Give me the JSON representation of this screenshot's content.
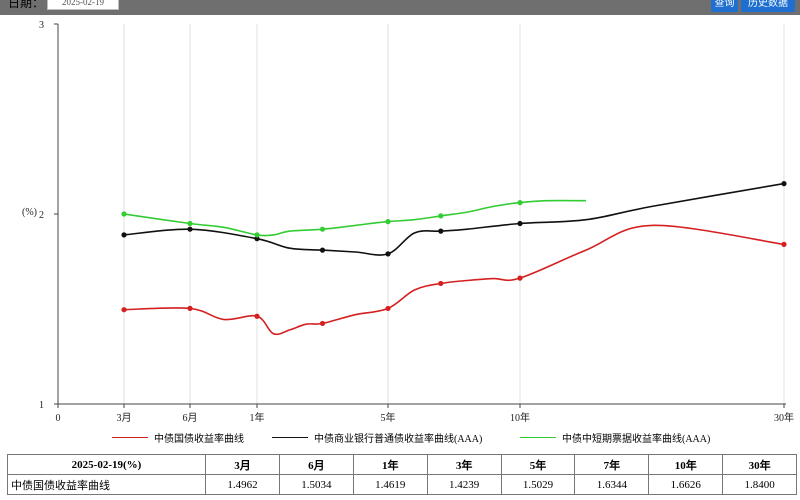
{
  "toolbar": {
    "date_label": "日期：",
    "date_value": "2025-02-19",
    "query_label": "查询",
    "history_label": "历史数据"
  },
  "chart_data": {
    "type": "line",
    "ylabel": "(%)",
    "ylim": [
      1,
      3
    ],
    "yticks": [
      "1",
      "2",
      "3"
    ],
    "xlim": [
      0,
      30
    ],
    "xticks": [
      {
        "v": 0,
        "label": "0"
      },
      {
        "v": 0.25,
        "label": "3月"
      },
      {
        "v": 0.5,
        "label": "6月"
      },
      {
        "v": 1,
        "label": "1年"
      },
      {
        "v": 5,
        "label": "5年"
      },
      {
        "v": 10,
        "label": "10年"
      },
      {
        "v": 30,
        "label": "30年"
      }
    ],
    "series": [
      {
        "name": "中债国债收益率曲线",
        "color": "#d42020",
        "x": [
          0.25,
          0.5,
          0.75,
          1,
          1.5,
          2,
          2.5,
          3,
          4,
          5,
          6,
          7,
          8,
          9,
          10,
          15,
          20,
          30
        ],
        "y": [
          1.4962,
          1.5034,
          1.445,
          1.4619,
          1.37,
          1.39,
          1.42,
          1.4239,
          1.47,
          1.5029,
          1.6,
          1.6344,
          1.65,
          1.66,
          1.6626,
          1.81,
          1.94,
          1.84
        ],
        "markers_x": [
          0.25,
          0.5,
          1,
          3,
          5,
          7,
          10,
          30
        ],
        "markers_y": [
          1.4962,
          1.5034,
          1.4619,
          1.4239,
          1.5029,
          1.6344,
          1.6626,
          1.84
        ]
      },
      {
        "name": "中债商业银行普通债收益率曲线(AAA)",
        "color": "#111111",
        "x": [
          0.25,
          0.5,
          1,
          2,
          3,
          4,
          5,
          6,
          7,
          8,
          10,
          15,
          20,
          30
        ],
        "y": [
          1.89,
          1.92,
          1.87,
          1.82,
          1.81,
          1.8,
          1.79,
          1.9,
          1.91,
          1.92,
          1.95,
          1.97,
          2.04,
          2.16
        ],
        "markers_x": [
          0.25,
          0.5,
          1,
          3,
          5,
          7,
          10,
          30
        ],
        "markers_y": [
          1.89,
          1.92,
          1.87,
          1.81,
          1.79,
          1.91,
          1.95,
          2.16
        ]
      },
      {
        "name": "中债中短期票据收益率曲线(AAA)",
        "color": "#33cc33",
        "x": [
          0.25,
          0.5,
          0.75,
          1,
          1.5,
          2,
          3,
          4,
          5,
          6,
          7,
          8,
          9,
          10,
          12,
          15
        ],
        "y": [
          2.0,
          1.95,
          1.93,
          1.89,
          1.89,
          1.91,
          1.92,
          1.94,
          1.96,
          1.97,
          1.99,
          2.01,
          2.04,
          2.06,
          2.07,
          2.07
        ],
        "markers_x": [
          0.25,
          0.5,
          1,
          3,
          5,
          7,
          10
        ],
        "markers_y": [
          2.0,
          1.95,
          1.89,
          1.92,
          1.96,
          1.99,
          2.06
        ]
      }
    ]
  },
  "table": {
    "header": [
      "2025-02-19(%)",
      "3月",
      "6月",
      "1年",
      "3年",
      "5年",
      "7年",
      "10年",
      "30年"
    ],
    "rows": [
      [
        "中债国债收益率曲线",
        "1.4962",
        "1.5034",
        "1.4619",
        "1.4239",
        "1.5029",
        "1.6344",
        "1.6626",
        "1.8400"
      ]
    ]
  }
}
